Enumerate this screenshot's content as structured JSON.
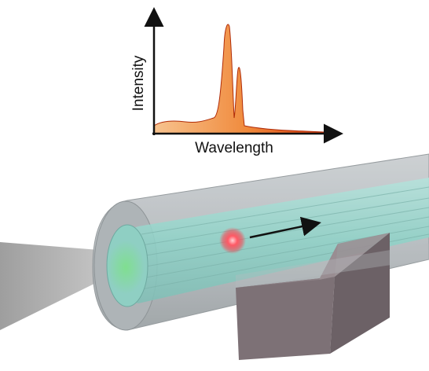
{
  "spectrum": {
    "ylabel": "Intensity",
    "xlabel": "Wavelength"
  },
  "colors": {
    "spectrum_fill_light": "#f6c08a",
    "spectrum_fill_dark": "#e34a10",
    "fiber_outer": "#b7bcbf",
    "fiber_core": "#9fd8d0",
    "light_cone": "#9a9a9a",
    "particle": "#ff4d5a",
    "detector": "#7a6e73",
    "arrow": "#111111"
  },
  "icons": {
    "motion": "arrow-right-icon",
    "particle": "glowing-particle-icon"
  }
}
